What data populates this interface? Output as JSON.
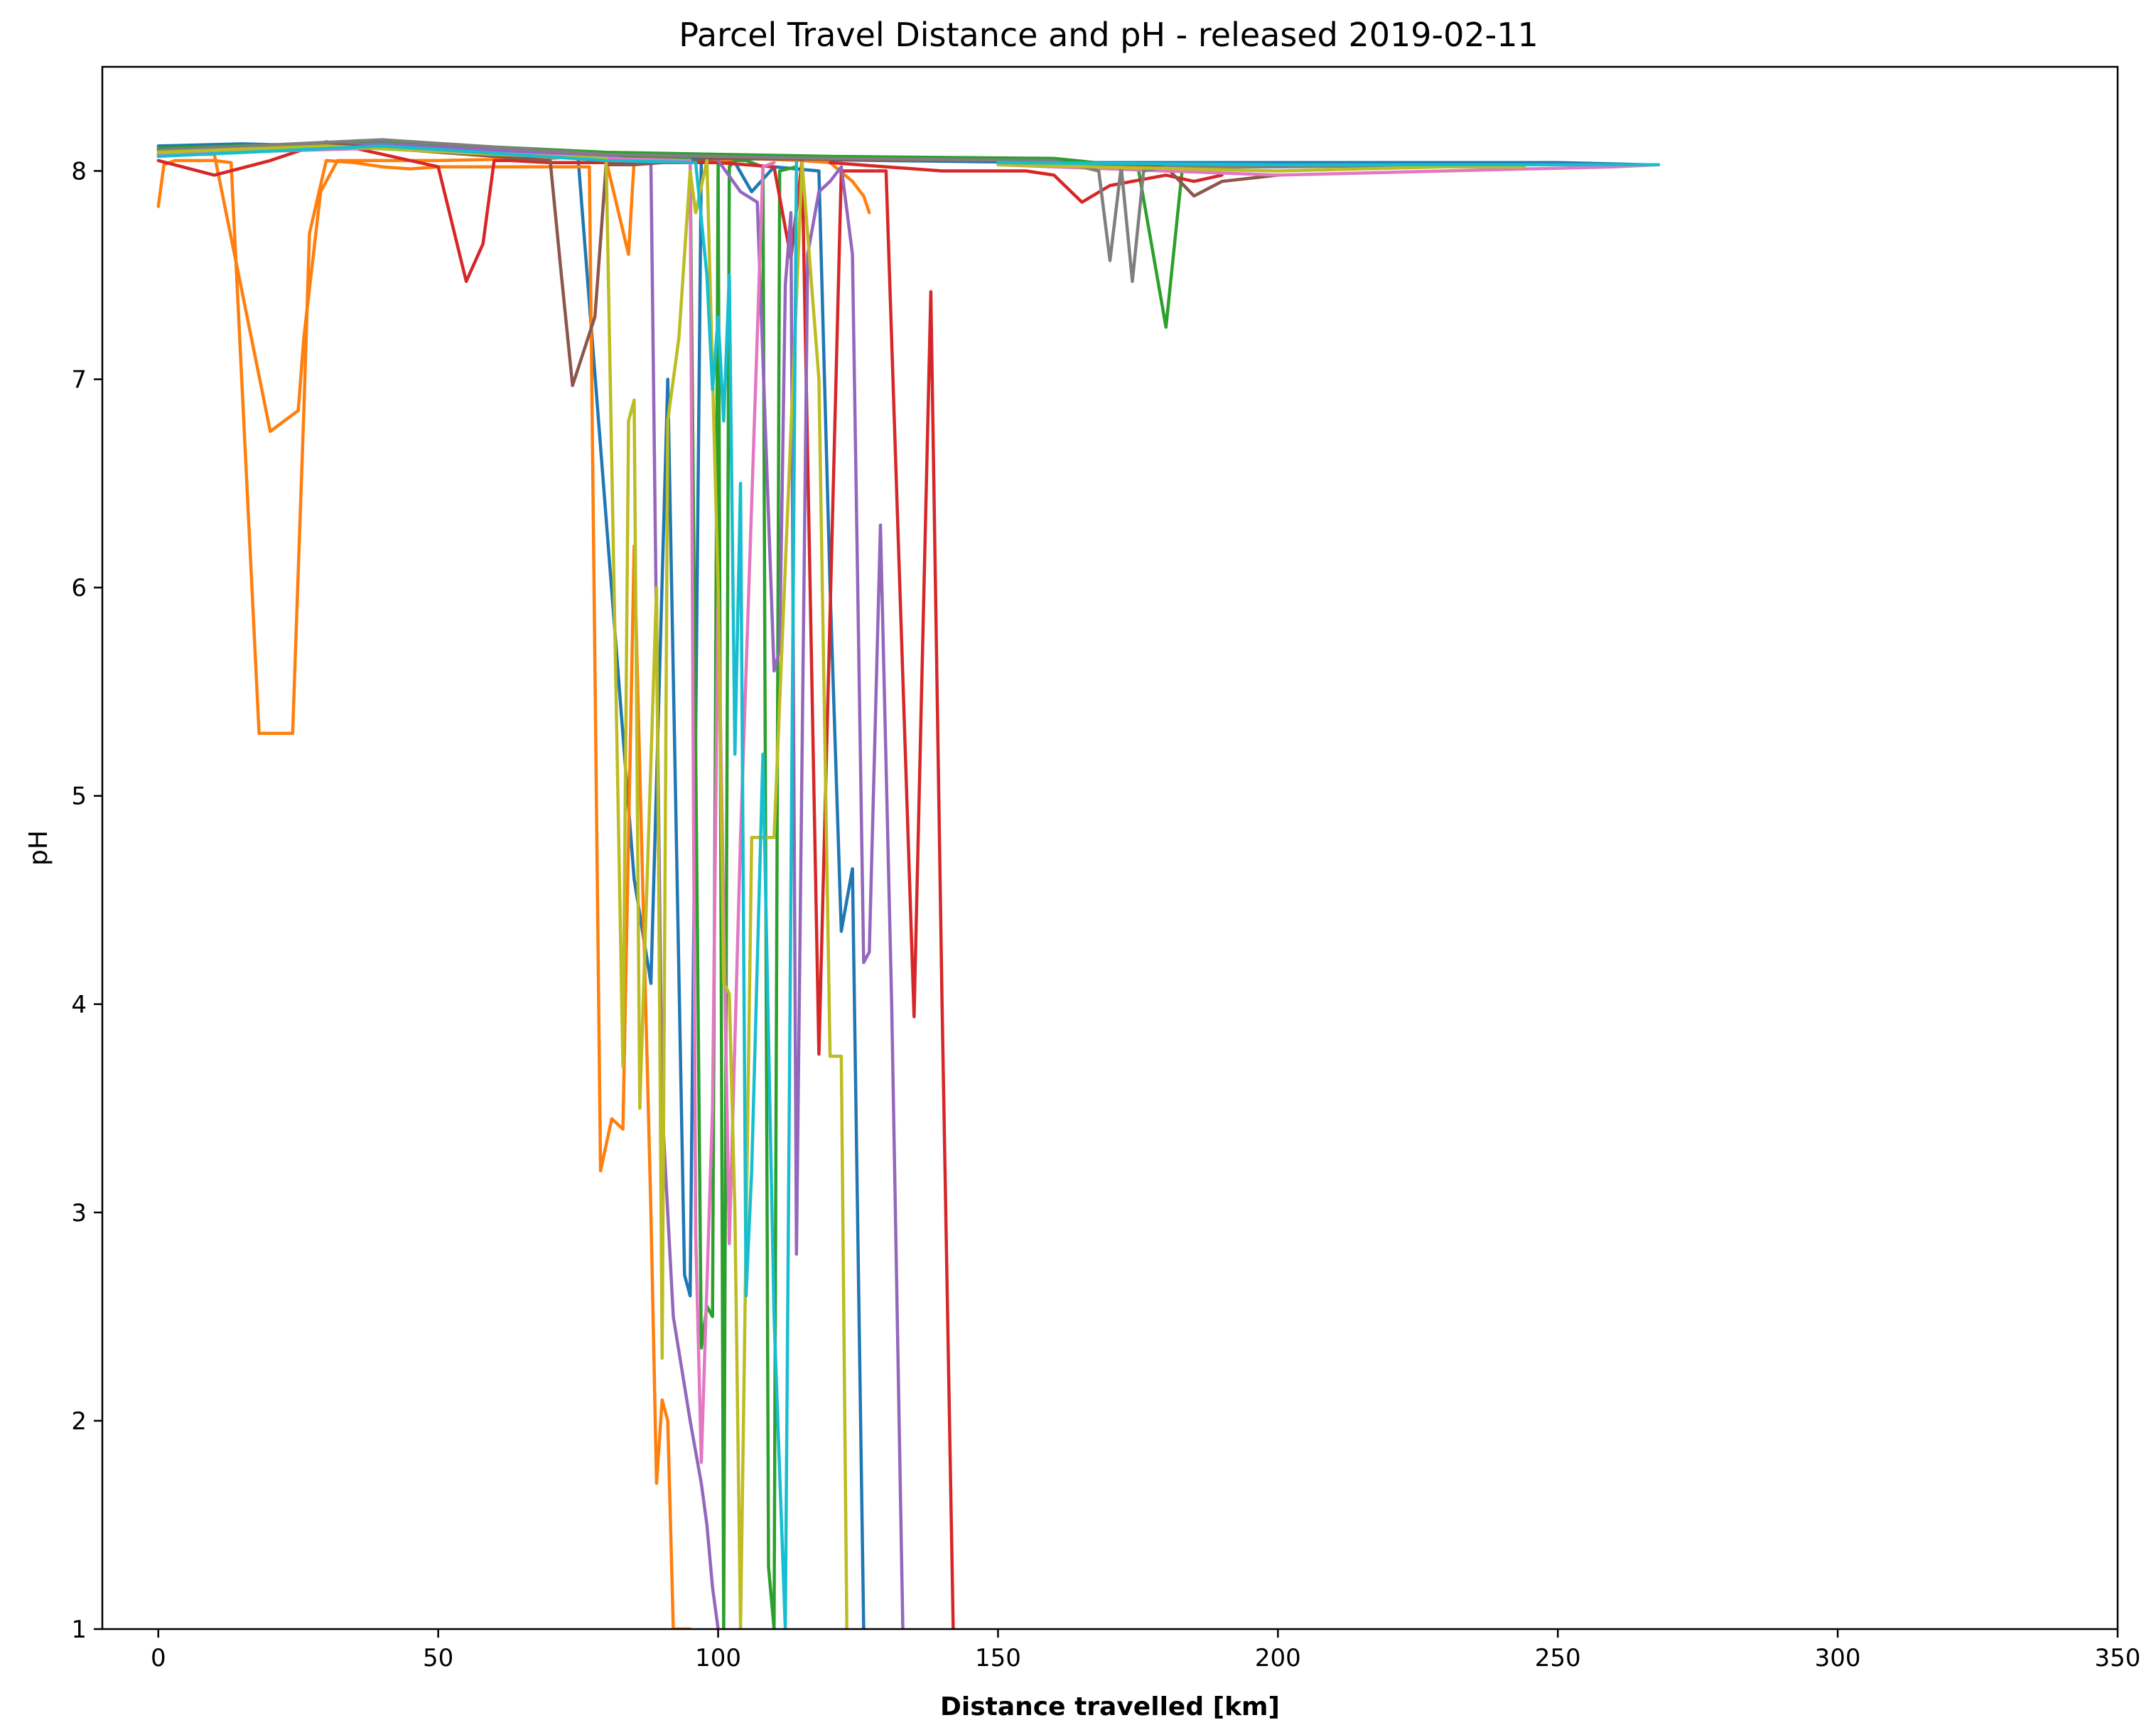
{
  "chart_data": {
    "type": "line",
    "title": "Parcel Travel Distance and pH - released 2019-02-11",
    "xlabel": "Distance travelled [km]",
    "ylabel": "pH",
    "xlim": [
      -10,
      350
    ],
    "ylim": [
      1,
      8.5
    ],
    "xticks": [
      0,
      50,
      100,
      150,
      200,
      250,
      300,
      350
    ],
    "yticks": [
      1,
      2,
      3,
      4,
      5,
      6,
      7,
      8
    ],
    "grid": false,
    "legend": "none",
    "series": [
      {
        "color": "#1f77b4",
        "x": [
          0,
          15,
          30,
          45,
          60,
          75,
          85,
          88,
          91,
          94,
          95,
          97,
          100,
          103,
          106,
          110,
          118,
          120,
          122,
          124,
          126
        ],
        "y": [
          8.12,
          8.13,
          8.12,
          8.1,
          8.08,
          8.06,
          4.6,
          4.1,
          7.0,
          2.7,
          2.6,
          8.05,
          8.06,
          8.04,
          7.9,
          8.02,
          8.0,
          6.0,
          4.35,
          4.65,
          1.0
        ]
      },
      {
        "color": "#1f77b4",
        "x": [
          0,
          20,
          40,
          60,
          80,
          100,
          130,
          160,
          190,
          220,
          250,
          266
        ],
        "y": [
          8.08,
          8.1,
          8.11,
          8.09,
          8.07,
          8.06,
          8.05,
          8.04,
          8.04,
          8.04,
          8.04,
          8.03
        ]
      },
      {
        "color": "#ff7f0e",
        "x": [
          0,
          1,
          3,
          10,
          13,
          18,
          21,
          24,
          26,
          27,
          30,
          35,
          40,
          45,
          50,
          60,
          70,
          75,
          77,
          79,
          81,
          83,
          85,
          88,
          89,
          90,
          91,
          92,
          95
        ],
        "y": [
          7.83,
          8.03,
          8.05,
          8.05,
          8.04,
          5.3,
          5.3,
          5.3,
          6.85,
          7.7,
          8.05,
          8.04,
          8.02,
          8.01,
          8.02,
          8.02,
          8.02,
          8.02,
          8.02,
          3.2,
          3.45,
          3.4,
          6.2,
          3.0,
          1.7,
          2.1,
          2.0,
          1.0,
          1.0
        ]
      },
      {
        "color": "#ff7f0e",
        "x": [
          0,
          10,
          20,
          25,
          26,
          29,
          32,
          40,
          50
        ],
        "y": [
          8.08,
          8.08,
          6.75,
          6.85,
          7.2,
          7.9,
          8.05,
          8.05,
          8.05
        ]
      },
      {
        "color": "#ff7f0e",
        "x": [
          50,
          70,
          75,
          80,
          84,
          85,
          90,
          94,
          97,
          100,
          105,
          115,
          120,
          124,
          126,
          127
        ],
        "y": [
          8.05,
          8.06,
          8.07,
          8.05,
          7.6,
          8.05,
          8.06,
          8.05,
          8.04,
          8.05,
          8.06,
          8.05,
          8.04,
          7.95,
          7.88,
          7.8
        ]
      },
      {
        "color": "#2ca02c",
        "x": [
          0,
          20,
          40,
          60,
          80,
          95,
          97,
          98,
          99,
          100,
          101,
          102,
          103,
          105
        ],
        "y": [
          8.1,
          8.12,
          8.13,
          8.1,
          8.08,
          8.06,
          2.35,
          2.55,
          2.5,
          8.04,
          1.0,
          8.02,
          8.05,
          8.05
        ]
      },
      {
        "color": "#2ca02c",
        "x": [
          105,
          108,
          109,
          110,
          111,
          114
        ],
        "y": [
          8.05,
          8.02,
          1.3,
          1.0,
          8.0,
          8.02
        ]
      },
      {
        "color": "#2ca02c",
        "x": [
          0,
          40,
          80,
          120,
          160,
          175,
          180,
          183,
          200,
          240,
          268
        ],
        "y": [
          8.11,
          8.14,
          8.09,
          8.07,
          8.06,
          8.02,
          7.25,
          8.03,
          8.03,
          8.03,
          8.03
        ]
      },
      {
        "color": "#d62728",
        "x": [
          0,
          10,
          20,
          30,
          40,
          50,
          55,
          58,
          60,
          63,
          70,
          80,
          100,
          110,
          113,
          115,
          118,
          122,
          130,
          135,
          138,
          140,
          142
        ],
        "y": [
          8.05,
          7.98,
          8.05,
          8.14,
          8.08,
          8.02,
          7.47,
          7.65,
          8.05,
          8.05,
          8.04,
          8.04,
          8.04,
          8.02,
          7.58,
          8.05,
          3.76,
          8.0,
          8.0,
          3.94,
          7.42,
          4.0,
          1.0
        ]
      },
      {
        "color": "#d62728",
        "x": [
          120,
          130,
          140,
          150,
          155,
          160,
          165,
          170,
          180,
          185,
          190
        ],
        "y": [
          8.04,
          8.02,
          8.0,
          8.0,
          8.0,
          7.98,
          7.85,
          7.93,
          7.98,
          7.95,
          7.98
        ]
      },
      {
        "color": "#9467bd",
        "x": [
          0,
          40,
          80,
          88,
          90,
          92,
          95,
          97,
          98,
          99,
          100
        ],
        "y": [
          8.1,
          8.13,
          8.07,
          8.04,
          3.5,
          2.5,
          2.0,
          1.7,
          1.5,
          1.2,
          1.0
        ]
      },
      {
        "color": "#9467bd",
        "x": [
          100,
          104,
          107,
          110,
          111,
          112,
          113,
          114,
          116,
          118,
          120,
          122,
          124,
          126,
          127,
          129,
          131,
          133
        ],
        "y": [
          8.05,
          7.9,
          7.85,
          5.6,
          5.7,
          7.45,
          7.8,
          2.8,
          7.6,
          7.9,
          7.95,
          8.02,
          7.6,
          4.2,
          4.25,
          6.3,
          4.0,
          1.0
        ]
      },
      {
        "color": "#8c564b",
        "x": [
          0,
          30,
          60,
          70,
          72,
          74,
          78,
          80,
          85,
          100,
          150,
          180,
          185,
          190,
          200
        ],
        "y": [
          8.1,
          8.13,
          8.07,
          8.05,
          7.5,
          6.97,
          7.3,
          8.03,
          8.03,
          8.06,
          8.05,
          8.02,
          7.88,
          7.95,
          7.98
        ]
      },
      {
        "color": "#e377c2",
        "x": [
          0,
          40,
          80,
          95,
          96,
          97,
          99,
          100,
          102,
          104,
          108,
          110
        ],
        "y": [
          8.08,
          8.11,
          8.06,
          8.05,
          2.9,
          1.8,
          3.5,
          6.0,
          2.85,
          4.8,
          8.02,
          8.04
        ]
      },
      {
        "color": "#e377c2",
        "x": [
          150,
          200,
          230,
          260,
          268
        ],
        "y": [
          8.03,
          7.98,
          8.0,
          8.02,
          8.03
        ]
      },
      {
        "color": "#7f7f7f",
        "x": [
          0,
          40,
          80,
          120,
          160,
          168,
          170,
          172,
          174,
          176,
          180,
          200,
          240,
          262
        ],
        "y": [
          8.1,
          8.15,
          8.08,
          8.06,
          8.05,
          8.0,
          7.57,
          8.02,
          7.47,
          8.0,
          8.02,
          8.02,
          8.03,
          8.03
        ]
      },
      {
        "color": "#bcbd22",
        "x": [
          0,
          30,
          60,
          80,
          83,
          84,
          85,
          86,
          89,
          90,
          91,
          93,
          95,
          96,
          98,
          100,
          101,
          102,
          103,
          104,
          106,
          110,
          115,
          118,
          120,
          122,
          123
        ],
        "y": [
          8.09,
          8.12,
          8.08,
          8.06,
          3.7,
          6.8,
          6.9,
          3.5,
          6.0,
          2.3,
          6.8,
          7.2,
          8.0,
          7.8,
          8.05,
          6.0,
          4.1,
          4.05,
          3.0,
          1.0,
          4.8,
          4.8,
          8.04,
          7.0,
          3.75,
          3.75,
          1.0
        ]
      },
      {
        "color": "#bcbd22",
        "x": [
          150,
          200,
          230,
          244
        ],
        "y": [
          8.03,
          8.0,
          8.02,
          8.02
        ]
      },
      {
        "color": "#17becf",
        "x": [
          0,
          40,
          80,
          96,
          98,
          99,
          100,
          101,
          102,
          103,
          104,
          105,
          106,
          108,
          110,
          112,
          114
        ],
        "y": [
          8.07,
          8.12,
          8.05,
          8.04,
          7.5,
          6.95,
          7.3,
          6.8,
          7.5,
          5.2,
          6.5,
          2.6,
          3.2,
          5.2,
          2.5,
          1.0,
          8.04
        ]
      },
      {
        "color": "#17becf",
        "x": [
          150,
          200,
          240,
          268
        ],
        "y": [
          8.04,
          8.03,
          8.03,
          8.03
        ]
      }
    ]
  }
}
